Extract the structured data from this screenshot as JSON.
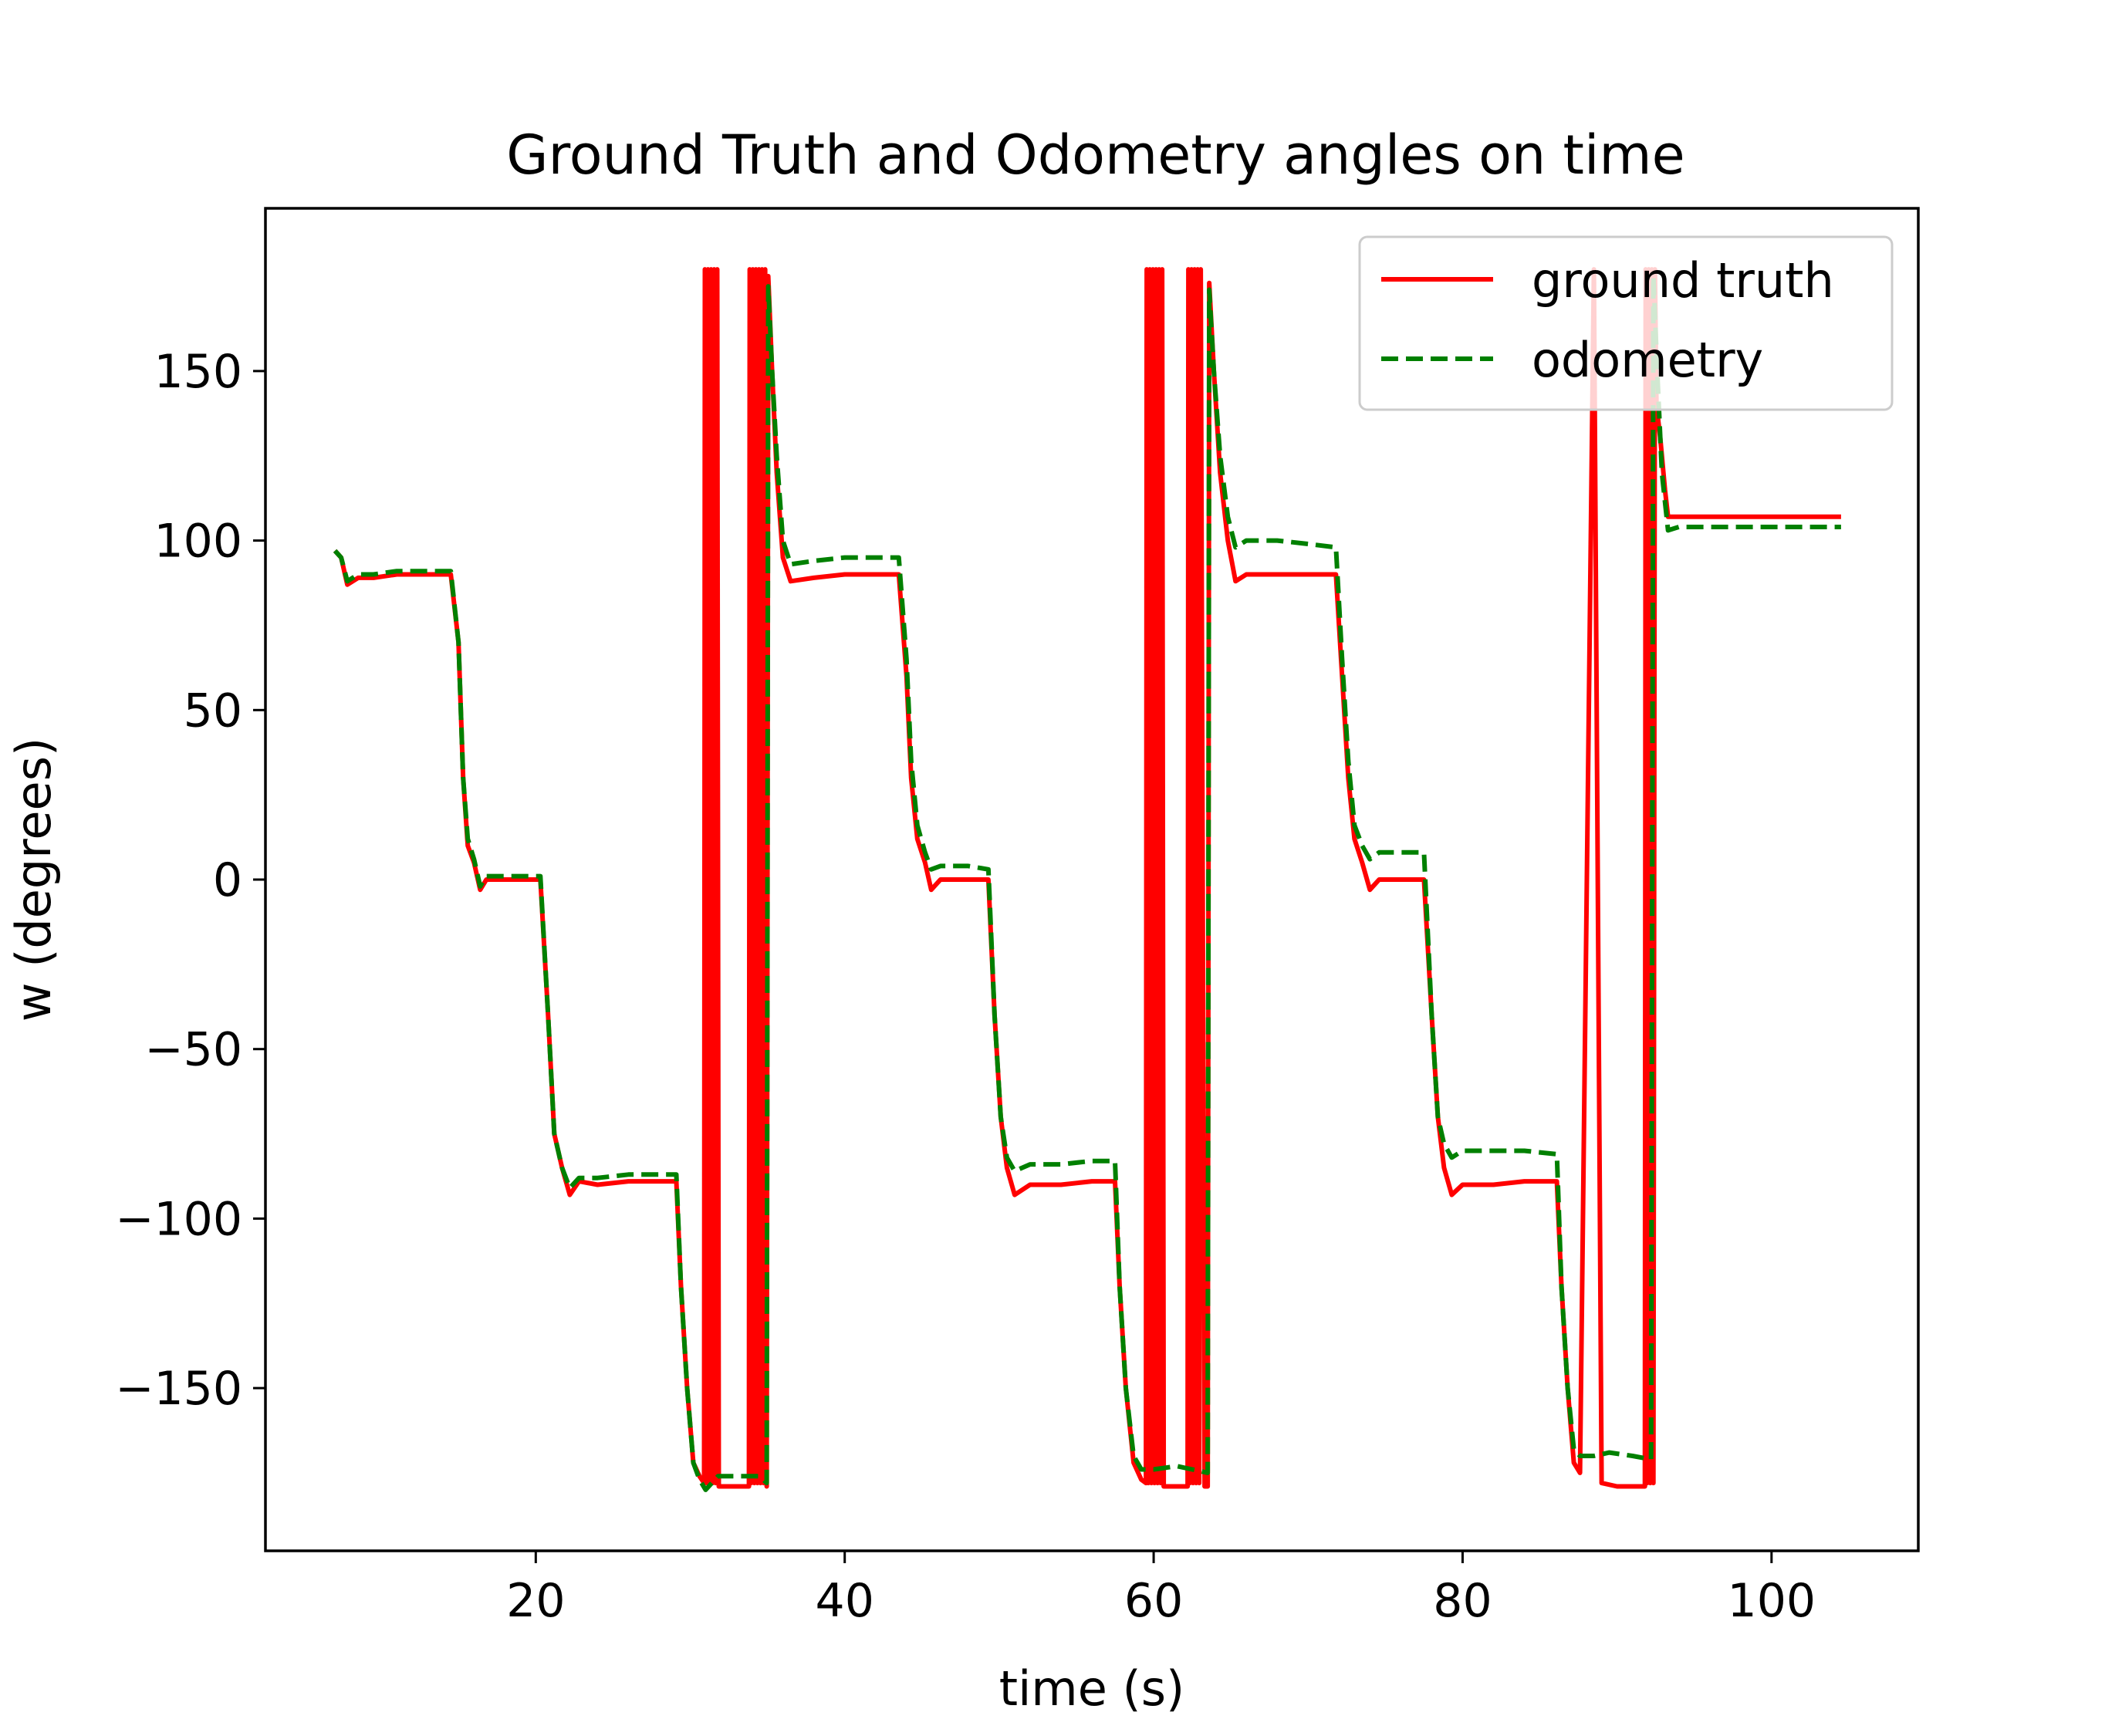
{
  "chart_data": {
    "type": "line",
    "title": "Ground Truth and Odometry angles on time",
    "xlabel": "time (s)",
    "ylabel": "w (degrees)",
    "xlim": [
      2.5,
      109.5
    ],
    "ylim": [
      -198,
      198
    ],
    "xticks": [
      {
        "value": 20,
        "label": "20"
      },
      {
        "value": 40,
        "label": "40"
      },
      {
        "value": 60,
        "label": "60"
      },
      {
        "value": 80,
        "label": "80"
      },
      {
        "value": 100,
        "label": "100"
      }
    ],
    "yticks": [
      {
        "value": 150,
        "label": "150"
      },
      {
        "value": 100,
        "label": "100"
      },
      {
        "value": 50,
        "label": "50"
      },
      {
        "value": 0,
        "label": "0"
      },
      {
        "value": -50,
        "label": "−50"
      },
      {
        "value": -100,
        "label": "−100"
      },
      {
        "value": -150,
        "label": "−150"
      }
    ],
    "grid": false,
    "legend_position": "top-right",
    "series": [
      {
        "name": "ground truth",
        "color": "#ff0000",
        "style": "solid",
        "points": [
          [
            7.0,
            97
          ],
          [
            7.4,
            95
          ],
          [
            7.8,
            87
          ],
          [
            8.5,
            89
          ],
          [
            9.5,
            89
          ],
          [
            11,
            90
          ],
          [
            12.5,
            90
          ],
          [
            14.5,
            90
          ],
          [
            15.0,
            70
          ],
          [
            15.3,
            30
          ],
          [
            15.6,
            10
          ],
          [
            16.0,
            5
          ],
          [
            16.4,
            -3
          ],
          [
            16.8,
            0
          ],
          [
            18,
            0
          ],
          [
            19.5,
            0
          ],
          [
            20.3,
            0
          ],
          [
            20.8,
            -40
          ],
          [
            21.2,
            -75
          ],
          [
            21.7,
            -85
          ],
          [
            22.2,
            -93
          ],
          [
            22.8,
            -89
          ],
          [
            24,
            -90
          ],
          [
            26,
            -89
          ],
          [
            28,
            -89
          ],
          [
            29.1,
            -89
          ],
          [
            29.4,
            -120
          ],
          [
            29.8,
            -150
          ],
          [
            30.2,
            -172
          ],
          [
            30.6,
            -176
          ],
          [
            30.9,
            -178
          ],
          [
            30.95,
            180
          ],
          [
            31.05,
            -178
          ],
          [
            31.15,
            180
          ],
          [
            31.25,
            -178
          ],
          [
            31.35,
            180
          ],
          [
            31.45,
            -178
          ],
          [
            31.55,
            180
          ],
          [
            31.65,
            -178
          ],
          [
            31.75,
            180
          ],
          [
            31.85,
            -179
          ],
          [
            32.5,
            -179
          ],
          [
            33.5,
            -179
          ],
          [
            33.8,
            -179
          ],
          [
            33.85,
            180
          ],
          [
            33.95,
            -178
          ],
          [
            34.05,
            180
          ],
          [
            34.15,
            -178
          ],
          [
            34.25,
            180
          ],
          [
            34.35,
            -178
          ],
          [
            34.45,
            180
          ],
          [
            34.55,
            -178
          ],
          [
            34.65,
            180
          ],
          [
            34.75,
            -178
          ],
          [
            34.85,
            180
          ],
          [
            34.95,
            -179
          ],
          [
            35.05,
            178
          ],
          [
            35.3,
            150
          ],
          [
            35.6,
            120
          ],
          [
            36,
            95
          ],
          [
            36.5,
            88
          ],
          [
            38,
            89
          ],
          [
            40,
            90
          ],
          [
            42,
            90
          ],
          [
            43.5,
            90
          ],
          [
            44.0,
            60
          ],
          [
            44.3,
            30
          ],
          [
            44.7,
            12
          ],
          [
            45.2,
            5
          ],
          [
            45.6,
            -3
          ],
          [
            46.2,
            0
          ],
          [
            48,
            0
          ],
          [
            49.3,
            0
          ],
          [
            49.7,
            -40
          ],
          [
            50.1,
            -70
          ],
          [
            50.5,
            -85
          ],
          [
            51.0,
            -93
          ],
          [
            52,
            -90
          ],
          [
            54,
            -90
          ],
          [
            56,
            -89
          ],
          [
            57.5,
            -89
          ],
          [
            57.8,
            -120
          ],
          [
            58.2,
            -150
          ],
          [
            58.7,
            -172
          ],
          [
            59.2,
            -177
          ],
          [
            59.5,
            -178
          ],
          [
            59.55,
            180
          ],
          [
            59.65,
            -178
          ],
          [
            59.75,
            180
          ],
          [
            59.85,
            -178
          ],
          [
            59.95,
            180
          ],
          [
            60.05,
            -178
          ],
          [
            60.15,
            180
          ],
          [
            60.25,
            -178
          ],
          [
            60.35,
            180
          ],
          [
            60.45,
            -178
          ],
          [
            60.55,
            180
          ],
          [
            60.65,
            -179
          ],
          [
            61.5,
            -179
          ],
          [
            62.2,
            -179
          ],
          [
            62.25,
            180
          ],
          [
            62.35,
            -178
          ],
          [
            62.45,
            180
          ],
          [
            62.55,
            -178
          ],
          [
            62.65,
            180
          ],
          [
            62.75,
            -178
          ],
          [
            62.85,
            180
          ],
          [
            62.95,
            -178
          ],
          [
            63.05,
            180
          ],
          [
            63.3,
            -179
          ],
          [
            63.5,
            -179
          ],
          [
            63.6,
            176
          ],
          [
            63.9,
            150
          ],
          [
            64.3,
            120
          ],
          [
            64.8,
            100
          ],
          [
            65.3,
            88
          ],
          [
            66,
            90
          ],
          [
            68,
            90
          ],
          [
            70,
            90
          ],
          [
            71.8,
            90
          ],
          [
            72.2,
            60
          ],
          [
            72.6,
            30
          ],
          [
            73.0,
            12
          ],
          [
            73.5,
            5
          ],
          [
            74.0,
            -3
          ],
          [
            74.6,
            0
          ],
          [
            76,
            0
          ],
          [
            77.5,
            0
          ],
          [
            78.0,
            -40
          ],
          [
            78.4,
            -70
          ],
          [
            78.8,
            -85
          ],
          [
            79.3,
            -93
          ],
          [
            80,
            -90
          ],
          [
            82,
            -90
          ],
          [
            84,
            -89
          ],
          [
            86.1,
            -89
          ],
          [
            86.4,
            -120
          ],
          [
            86.8,
            -150
          ],
          [
            87.2,
            -172
          ],
          [
            87.6,
            -175
          ],
          [
            88.5,
            180
          ],
          [
            89.0,
            -178
          ],
          [
            90,
            -179
          ],
          [
            91.5,
            -179
          ],
          [
            91.8,
            -179
          ],
          [
            91.85,
            180
          ],
          [
            91.95,
            -178
          ],
          [
            92.05,
            180
          ],
          [
            92.15,
            -178
          ],
          [
            92.25,
            180
          ],
          [
            92.35,
            -178
          ],
          [
            92.45,
            180
          ],
          [
            92.55,
            140
          ],
          [
            92.8,
            130
          ],
          [
            93.1,
            115
          ],
          [
            93.3,
            107
          ],
          [
            96,
            107
          ],
          [
            100,
            107
          ],
          [
            104.5,
            107
          ]
        ]
      },
      {
        "name": "odometry",
        "color": "#008000",
        "style": "dashed",
        "points": [
          [
            7.0,
            97
          ],
          [
            7.4,
            95
          ],
          [
            7.8,
            88
          ],
          [
            8.5,
            90
          ],
          [
            9.5,
            90
          ],
          [
            11,
            91
          ],
          [
            12.5,
            91
          ],
          [
            14.5,
            91
          ],
          [
            15.0,
            70
          ],
          [
            15.3,
            30
          ],
          [
            15.6,
            12
          ],
          [
            16.0,
            6
          ],
          [
            16.4,
            -2
          ],
          [
            16.8,
            1
          ],
          [
            18,
            1
          ],
          [
            19.5,
            1
          ],
          [
            20.3,
            1
          ],
          [
            20.8,
            -40
          ],
          [
            21.2,
            -75
          ],
          [
            21.7,
            -85
          ],
          [
            22.2,
            -91
          ],
          [
            22.8,
            -88
          ],
          [
            24,
            -88
          ],
          [
            26,
            -87
          ],
          [
            28,
            -87
          ],
          [
            29.1,
            -87
          ],
          [
            29.4,
            -120
          ],
          [
            29.8,
            -150
          ],
          [
            30.2,
            -172
          ],
          [
            30.6,
            -177
          ],
          [
            31.0,
            -180
          ],
          [
            31.8,
            -176
          ],
          [
            32.5,
            -176
          ],
          [
            33.5,
            -176
          ],
          [
            34.5,
            -176
          ],
          [
            34.95,
            -178
          ],
          [
            35.05,
            175
          ],
          [
            35.3,
            150
          ],
          [
            35.6,
            125
          ],
          [
            36,
            100
          ],
          [
            36.5,
            93
          ],
          [
            38,
            94
          ],
          [
            40,
            95
          ],
          [
            42,
            95
          ],
          [
            43.5,
            95
          ],
          [
            44.0,
            65
          ],
          [
            44.3,
            35
          ],
          [
            44.7,
            16
          ],
          [
            45.2,
            8
          ],
          [
            45.6,
            3
          ],
          [
            46.2,
            4
          ],
          [
            48,
            4
          ],
          [
            49.3,
            3
          ],
          [
            49.7,
            -40
          ],
          [
            50.1,
            -70
          ],
          [
            50.5,
            -82
          ],
          [
            51.0,
            -86
          ],
          [
            52,
            -84
          ],
          [
            54,
            -84
          ],
          [
            56,
            -83
          ],
          [
            57.5,
            -83
          ],
          [
            57.8,
            -120
          ],
          [
            58.2,
            -150
          ],
          [
            58.7,
            -170
          ],
          [
            59.2,
            -174
          ],
          [
            60,
            -174
          ],
          [
            61.5,
            -173
          ],
          [
            62.5,
            -174
          ],
          [
            63.5,
            -175
          ],
          [
            63.6,
            174
          ],
          [
            63.9,
            150
          ],
          [
            64.3,
            125
          ],
          [
            64.8,
            107
          ],
          [
            65.3,
            98
          ],
          [
            66,
            100
          ],
          [
            68,
            100
          ],
          [
            70,
            99
          ],
          [
            71.8,
            98
          ],
          [
            72.2,
            65
          ],
          [
            72.6,
            35
          ],
          [
            73.0,
            16
          ],
          [
            73.5,
            10
          ],
          [
            74.0,
            6
          ],
          [
            74.6,
            8
          ],
          [
            76,
            8
          ],
          [
            77.5,
            8
          ],
          [
            78.0,
            -40
          ],
          [
            78.4,
            -70
          ],
          [
            78.8,
            -78
          ],
          [
            79.3,
            -82
          ],
          [
            80,
            -80
          ],
          [
            82,
            -80
          ],
          [
            84,
            -80
          ],
          [
            86.1,
            -81
          ],
          [
            86.4,
            -120
          ],
          [
            86.8,
            -150
          ],
          [
            87.2,
            -168
          ],
          [
            87.6,
            -170
          ],
          [
            88.5,
            -170
          ],
          [
            89.5,
            -169
          ],
          [
            91,
            -170
          ],
          [
            92.2,
            -171
          ],
          [
            92.35,
            178
          ],
          [
            92.6,
            150
          ],
          [
            92.9,
            120
          ],
          [
            93.3,
            103
          ],
          [
            94,
            104
          ],
          [
            96,
            104
          ],
          [
            100,
            104
          ],
          [
            104.5,
            104
          ]
        ]
      }
    ]
  }
}
